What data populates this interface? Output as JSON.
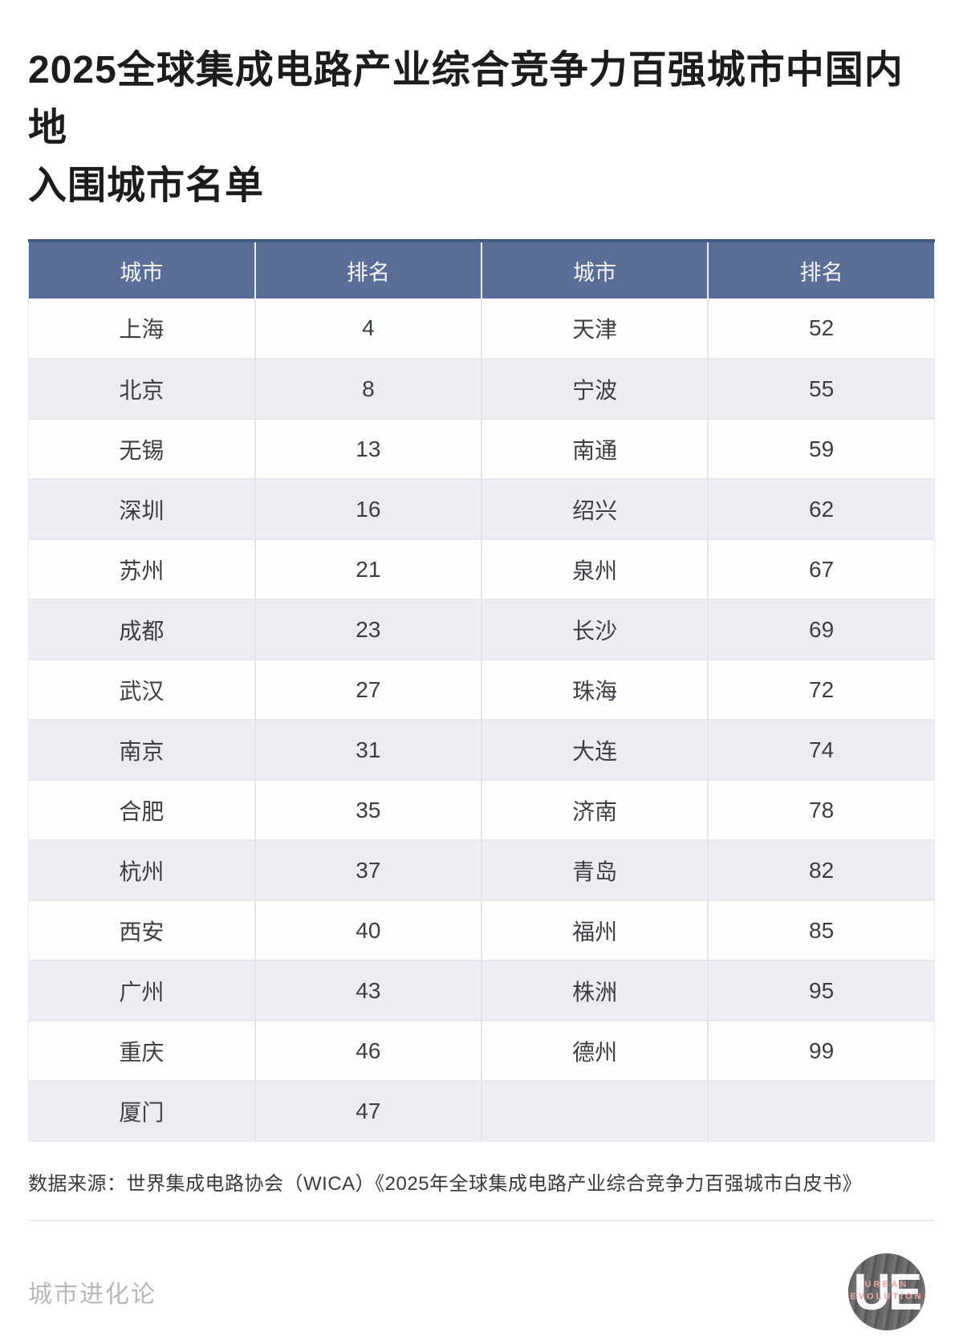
{
  "title": {
    "line1": "2025全球集成电路产业综合竞争力百强城市中国内地",
    "line2": "入围城市名单",
    "full": "2025全球集成电路产业综合竞争力百强城市中国内地入围城市名单"
  },
  "table": {
    "headers": [
      "城市",
      "排名",
      "城市",
      "排名"
    ],
    "rows": [
      [
        "上海",
        "4",
        "天津",
        "52"
      ],
      [
        "北京",
        "8",
        "宁波",
        "55"
      ],
      [
        "无锡",
        "13",
        "南通",
        "59"
      ],
      [
        "深圳",
        "16",
        "绍兴",
        "62"
      ],
      [
        "苏州",
        "21",
        "泉州",
        "67"
      ],
      [
        "成都",
        "23",
        "长沙",
        "69"
      ],
      [
        "武汉",
        "27",
        "珠海",
        "72"
      ],
      [
        "南京",
        "31",
        "大连",
        "74"
      ],
      [
        "合肥",
        "35",
        "济南",
        "78"
      ],
      [
        "杭州",
        "37",
        "青岛",
        "82"
      ],
      [
        "西安",
        "40",
        "福州",
        "85"
      ],
      [
        "广州",
        "43",
        "株洲",
        "95"
      ],
      [
        "重庆",
        "46",
        "德州",
        "99"
      ],
      [
        "厦门",
        "47",
        "",
        ""
      ]
    ]
  },
  "source": "数据来源：世界集成电路协会（WICA）《2025年全球集成电路产业综合竞争力百强城市白皮书》",
  "footer": {
    "brand": "城市进化论",
    "logo": {
      "initials": "UE",
      "line1": "URBAN",
      "line2": "EVOLUTION"
    }
  },
  "colors": {
    "header_bg": "#5a6d96",
    "header_top_border": "#47597f",
    "row_white": "#fefefe",
    "row_alt": "#ebedf3",
    "cell_border": "#e2e5ec",
    "title_text": "#1c1c1c",
    "brand_text": "#b8b8b8",
    "logo_bg": "#626262",
    "logo_accent": "#e9a6a6"
  },
  "chart_data": {
    "type": "table",
    "title": "2025全球集成电路产业综合竞争力百强城市中国内地入围城市名单",
    "columns": [
      "城市",
      "排名",
      "城市",
      "排名"
    ],
    "rows": [
      [
        "上海",
        4,
        "天津",
        52
      ],
      [
        "北京",
        8,
        "宁波",
        55
      ],
      [
        "无锡",
        13,
        "南通",
        59
      ],
      [
        "深圳",
        16,
        "绍兴",
        62
      ],
      [
        "苏州",
        21,
        "泉州",
        67
      ],
      [
        "成都",
        23,
        "长沙",
        69
      ],
      [
        "武汉",
        27,
        "珠海",
        72
      ],
      [
        "南京",
        31,
        "大连",
        74
      ],
      [
        "合肥",
        35,
        "济南",
        78
      ],
      [
        "杭州",
        37,
        "青岛",
        82
      ],
      [
        "西安",
        40,
        "福州",
        85
      ],
      [
        "广州",
        43,
        "株洲",
        95
      ],
      [
        "重庆",
        46,
        "德州",
        99
      ],
      [
        "厦门",
        47,
        null,
        null
      ]
    ],
    "entries": [
      {
        "city": "上海",
        "rank": 4
      },
      {
        "city": "北京",
        "rank": 8
      },
      {
        "city": "无锡",
        "rank": 13
      },
      {
        "city": "深圳",
        "rank": 16
      },
      {
        "city": "苏州",
        "rank": 21
      },
      {
        "city": "成都",
        "rank": 23
      },
      {
        "city": "武汉",
        "rank": 27
      },
      {
        "city": "南京",
        "rank": 31
      },
      {
        "city": "合肥",
        "rank": 35
      },
      {
        "city": "杭州",
        "rank": 37
      },
      {
        "city": "西安",
        "rank": 40
      },
      {
        "city": "广州",
        "rank": 43
      },
      {
        "city": "重庆",
        "rank": 46
      },
      {
        "city": "厦门",
        "rank": 47
      },
      {
        "city": "天津",
        "rank": 52
      },
      {
        "city": "宁波",
        "rank": 55
      },
      {
        "city": "南通",
        "rank": 59
      },
      {
        "city": "绍兴",
        "rank": 62
      },
      {
        "city": "泉州",
        "rank": 67
      },
      {
        "city": "长沙",
        "rank": 69
      },
      {
        "city": "珠海",
        "rank": 72
      },
      {
        "city": "大连",
        "rank": 74
      },
      {
        "city": "济南",
        "rank": 78
      },
      {
        "city": "青岛",
        "rank": 82
      },
      {
        "city": "福州",
        "rank": 85
      },
      {
        "city": "株洲",
        "rank": 95
      },
      {
        "city": "德州",
        "rank": 99
      }
    ],
    "source": "数据来源：世界集成电路协会（WICA）《2025年全球集成电路产业综合竞争力百强城市白皮书》",
    "publisher": "城市进化论"
  }
}
